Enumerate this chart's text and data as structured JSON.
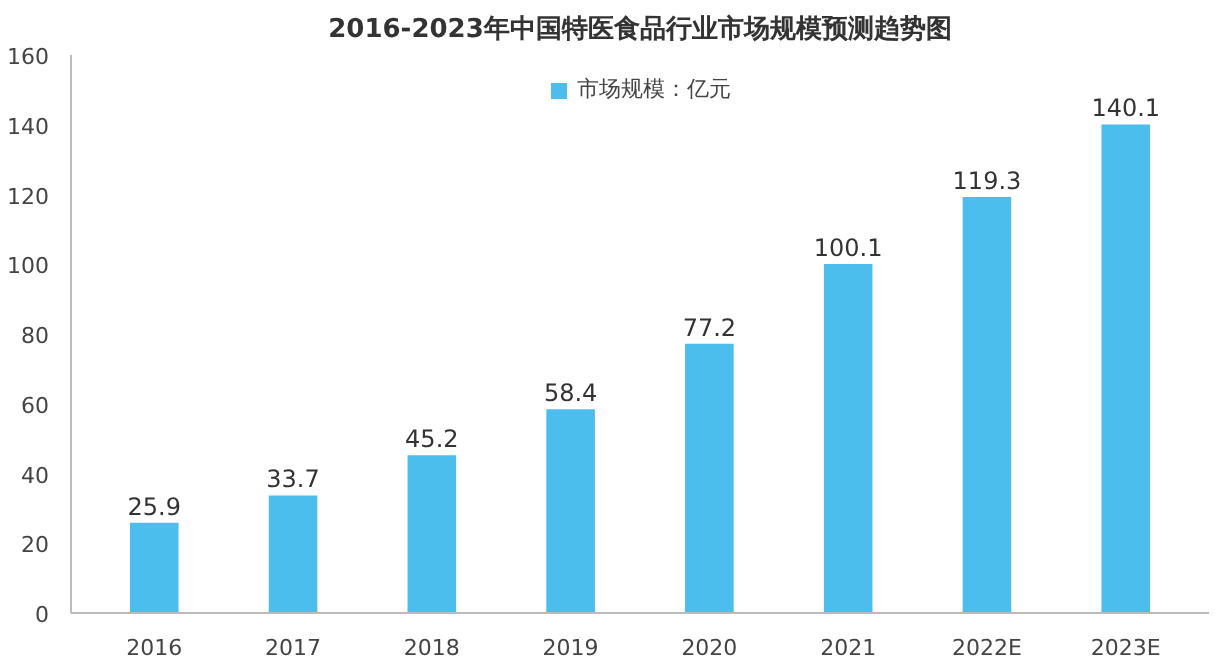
{
  "chart_data": {
    "type": "bar",
    "title": "2016-2023年中国特医食品行业市场规模预测趋势图",
    "categories": [
      "2016",
      "2017",
      "2018",
      "2019",
      "2020",
      "2021",
      "2022E",
      "2023E"
    ],
    "series": [
      {
        "name": "市场规模：亿元",
        "color": "#4cbeee",
        "values": [
          25.9,
          33.7,
          45.2,
          58.4,
          77.2,
          100.1,
          119.3,
          140.1
        ]
      }
    ],
    "ylim": [
      0,
      160
    ],
    "yticks": [
      0,
      20,
      40,
      60,
      80,
      100,
      120,
      140,
      160
    ],
    "grid": false,
    "legend": "top",
    "data_labels": true
  }
}
